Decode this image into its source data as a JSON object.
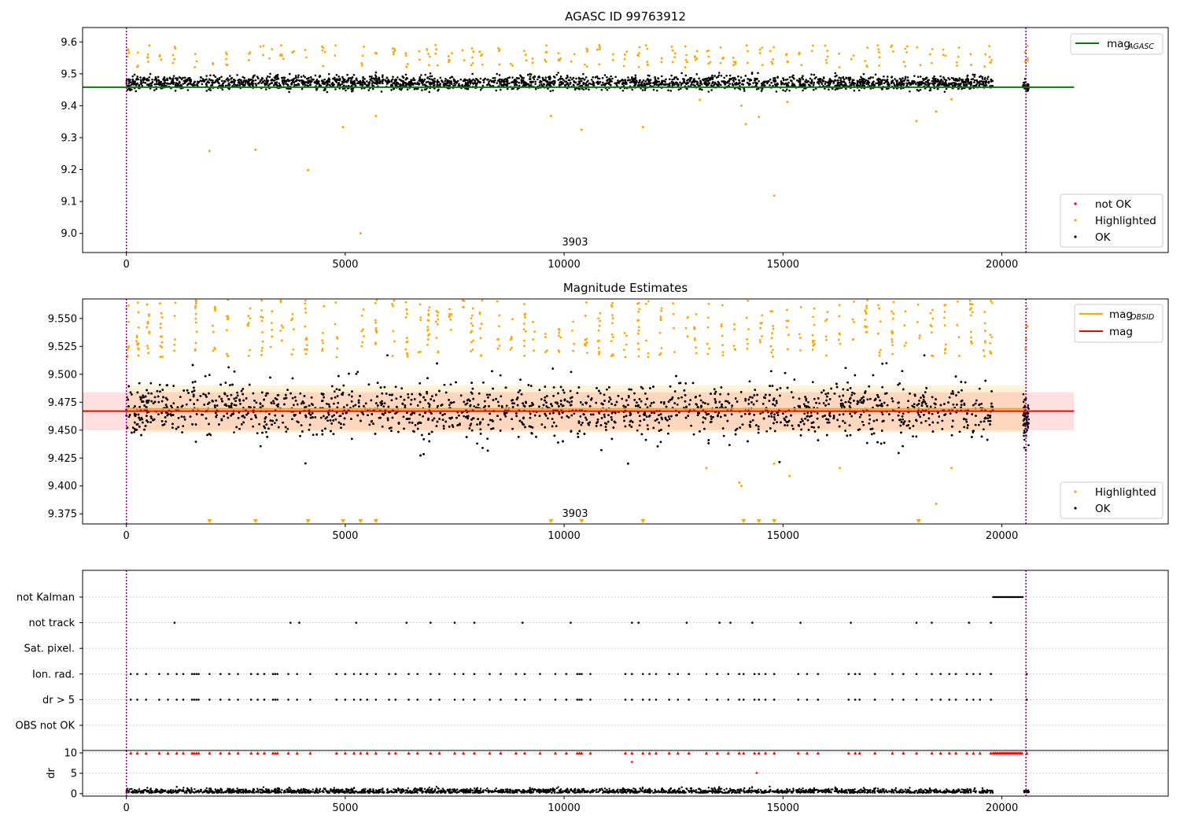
{
  "chart_data": [
    {
      "type": "scatter",
      "title": "AGASC ID 99763912",
      "annotation": "3903",
      "xlim": [
        -1000,
        23800
      ],
      "ylim": [
        8.94,
        9.645
      ],
      "xticks": [
        0,
        5000,
        10000,
        15000,
        20000
      ],
      "xtick_labels": [
        "0",
        "5000",
        "10000",
        "15000",
        "20000"
      ],
      "yticks": [
        9.0,
        9.1,
        9.2,
        9.3,
        9.4,
        9.5,
        9.6
      ],
      "ytick_labels": [
        "9.0",
        "9.1",
        "9.2",
        "9.3",
        "9.4",
        "9.5",
        "9.6"
      ],
      "vlines": [
        0,
        20550
      ],
      "mag_agasc": 9.458,
      "mag_agasc_xrange": [
        -1000,
        21650
      ],
      "legend_upper": [
        {
          "label": "mag",
          "sub": "AGASC",
          "color": "#008000"
        }
      ],
      "legend_lower": [
        {
          "label": "not OK",
          "color": "#ff0000"
        },
        {
          "label": "Highlighted",
          "color": "#ffa500"
        },
        {
          "label": "OK",
          "color": "#000000"
        }
      ],
      "series": [
        {
          "name": "OK",
          "color": "#000000",
          "x_range": [
            0,
            19800
          ],
          "x_range_2": [
            20480,
            20620
          ],
          "y_center": 9.472,
          "y_spread": 0.022
        },
        {
          "name": "Highlighted",
          "color": "#ffa500",
          "points": [
            [
              1900,
              9.258
            ],
            [
              2950,
              9.262
            ],
            [
              4150,
              9.198
            ],
            [
              4950,
              9.333
            ],
            [
              5350,
              9.0
            ],
            [
              5700,
              9.368
            ],
            [
              9700,
              9.368
            ],
            [
              10400,
              9.325
            ],
            [
              11800,
              9.333
            ],
            [
              13100,
              9.418
            ],
            [
              14050,
              9.4
            ],
            [
              14150,
              9.342
            ],
            [
              14450,
              9.365
            ],
            [
              14800,
              9.118
            ],
            [
              15100,
              9.412
            ],
            [
              18050,
              9.352
            ],
            [
              18500,
              9.382
            ],
            [
              18850,
              9.42
            ]
          ],
          "upper_x": [
            30,
            250,
            500,
            800,
            1100,
            1600,
            2000,
            2300,
            2800,
            3100,
            3300,
            3550,
            3800,
            4100,
            4500,
            4800,
            5400,
            5700,
            6100,
            6400,
            6700,
            6900,
            7100,
            7400,
            7700,
            7900,
            8100,
            8500,
            8800,
            9100,
            9300,
            9600,
            9900,
            10200,
            10500,
            10800,
            11100,
            11400,
            11700,
            11900,
            12200,
            12500,
            12800,
            13000,
            13300,
            13600,
            13900,
            14200,
            14500,
            14750,
            15100,
            15400,
            15700,
            16000,
            16300,
            16600,
            16900,
            17200,
            17500,
            17800,
            18100,
            18400,
            18700,
            19000,
            19300,
            19600,
            19750,
            20560
          ],
          "upper_y_range": [
            9.52,
            9.59
          ]
        },
        {
          "name": "not OK",
          "color": "#ff0000",
          "points": []
        }
      ]
    },
    {
      "type": "scatter",
      "title": "Magnitude Estimates",
      "annotation": "3903",
      "xlim": [
        -1000,
        23800
      ],
      "ylim": [
        9.366,
        9.5675
      ],
      "xticks": [
        0,
        5000,
        10000,
        15000,
        20000
      ],
      "xtick_labels": [
        "0",
        "5000",
        "10000",
        "15000",
        "20000"
      ],
      "yticks": [
        9.375,
        9.4,
        9.425,
        9.45,
        9.475,
        9.5,
        9.525,
        9.55
      ],
      "ytick_labels": [
        "9.375",
        "9.400",
        "9.425",
        "9.450",
        "9.475",
        "9.500",
        "9.525",
        "9.550"
      ],
      "vlines": [
        0,
        20550
      ],
      "mag": 9.467,
      "mag_band": [
        9.45,
        9.484
      ],
      "mag_band_xrange": [
        -1000,
        21650
      ],
      "mag_obsid": 9.469,
      "mag_obsid_band": [
        9.448,
        9.49
      ],
      "mag_obsid_xrange": [
        0,
        20550
      ],
      "legend_upper": [
        {
          "label": "mag",
          "sub": "OBSID",
          "color": "#ffa500"
        },
        {
          "label": "mag",
          "sub": "",
          "color": "#ff0000"
        }
      ],
      "legend_lower": [
        {
          "label": "Highlighted",
          "color": "#ffa500"
        },
        {
          "label": "OK",
          "color": "#000000"
        }
      ],
      "highlighted_low_points": [
        [
          13250,
          9.416
        ],
        [
          14000,
          9.403
        ],
        [
          14050,
          9.4
        ],
        [
          14800,
          9.42
        ],
        [
          15150,
          9.409
        ],
        [
          16300,
          9.416
        ],
        [
          18500,
          9.384
        ],
        [
          18850,
          9.416
        ]
      ],
      "below_range_markers_x": [
        1900,
        2950,
        4150,
        4950,
        5350,
        5700,
        9700,
        10400,
        11800,
        14100,
        14450,
        14800,
        18100
      ]
    },
    {
      "type": "scatter",
      "title": "",
      "xlim": [
        -1000,
        23800
      ],
      "xticks": [
        0,
        5000,
        10000,
        15000,
        20000
      ],
      "xtick_labels": [
        "0",
        "5000",
        "10000",
        "15000",
        "20000"
      ],
      "vlines": [
        0,
        20550
      ],
      "flag_categories": [
        "not Kalman",
        "not track",
        "Sat. pixel.",
        "Ion. rad.",
        "dr > 5",
        "OBS not OK"
      ],
      "flags": {
        "not Kalman": {
          "x_range": [
            19800,
            20480
          ]
        },
        "not track": {
          "x": [
            1100,
            3750,
            3950,
            5250,
            6400,
            6950,
            7500,
            7950,
            9050,
            10150,
            11550,
            11700,
            12800,
            13550,
            13800,
            14300,
            15400,
            16550,
            18050,
            18400,
            19250,
            19750
          ]
        },
        "Sat. pixel.": {
          "x": []
        },
        "Ion. rad.": {
          "x": [
            100,
            250,
            450,
            750,
            950,
            1150,
            1300,
            1500,
            1550,
            1600,
            1650,
            1900,
            2150,
            2350,
            2550,
            2850,
            3000,
            3150,
            3350,
            3400,
            3450,
            3700,
            3900,
            4200,
            4800,
            5000,
            5200,
            5350,
            5500,
            5700,
            6000,
            6150,
            6450,
            6650,
            6950,
            7150,
            7500,
            7700,
            7950,
            8300,
            8550,
            8900,
            9100,
            9450,
            9800,
            10050,
            10300,
            10350,
            10400,
            10600,
            11400,
            11550,
            11800,
            11950,
            12100,
            12400,
            12600,
            12850,
            13250,
            13500,
            13750,
            14000,
            14100,
            14350,
            14450,
            14600,
            14800,
            15350,
            15550,
            15800,
            16500,
            16650,
            16750,
            17100,
            17500,
            17750,
            18050,
            18400,
            18600,
            18800,
            18950,
            19200,
            19350,
            19500,
            19750,
            20570
          ]
        },
        "dr > 5": {
          "x": [
            100,
            250,
            450,
            750,
            950,
            1150,
            1300,
            1500,
            1550,
            1600,
            1650,
            1900,
            2150,
            2350,
            2550,
            2850,
            3000,
            3150,
            3350,
            3400,
            3450,
            3700,
            3900,
            4200,
            4800,
            5000,
            5200,
            5350,
            5500,
            5700,
            6000,
            6150,
            6450,
            6650,
            6950,
            7150,
            7500,
            7700,
            7950,
            8300,
            8550,
            8900,
            9100,
            9450,
            9800,
            10050,
            10300,
            10350,
            10400,
            10600,
            11400,
            11550,
            11800,
            11950,
            12100,
            12400,
            12600,
            12850,
            13250,
            13500,
            13750,
            14000,
            14100,
            14350,
            14450,
            14600,
            14800,
            15350,
            15550,
            15800,
            16500,
            16650,
            16750,
            17100,
            17500,
            17750,
            18050,
            18400,
            18600,
            18800,
            18950,
            19200,
            19350,
            19500,
            19750,
            20570
          ]
        },
        "OBS not OK": {
          "x": []
        }
      },
      "dr_ylabel": "dr",
      "dr_yticks": [
        0,
        5,
        10
      ],
      "dr_ytick_labels": [
        "0",
        "5",
        "10"
      ],
      "dr_ylim": [
        -0.6,
        10.6
      ],
      "dr_ok_range": [
        0.2,
        2.2
      ],
      "dr_clipped_value": 10,
      "dr_outliers": [
        [
          11550,
          7.8
        ],
        [
          14400,
          5.1
        ]
      ]
    }
  ]
}
